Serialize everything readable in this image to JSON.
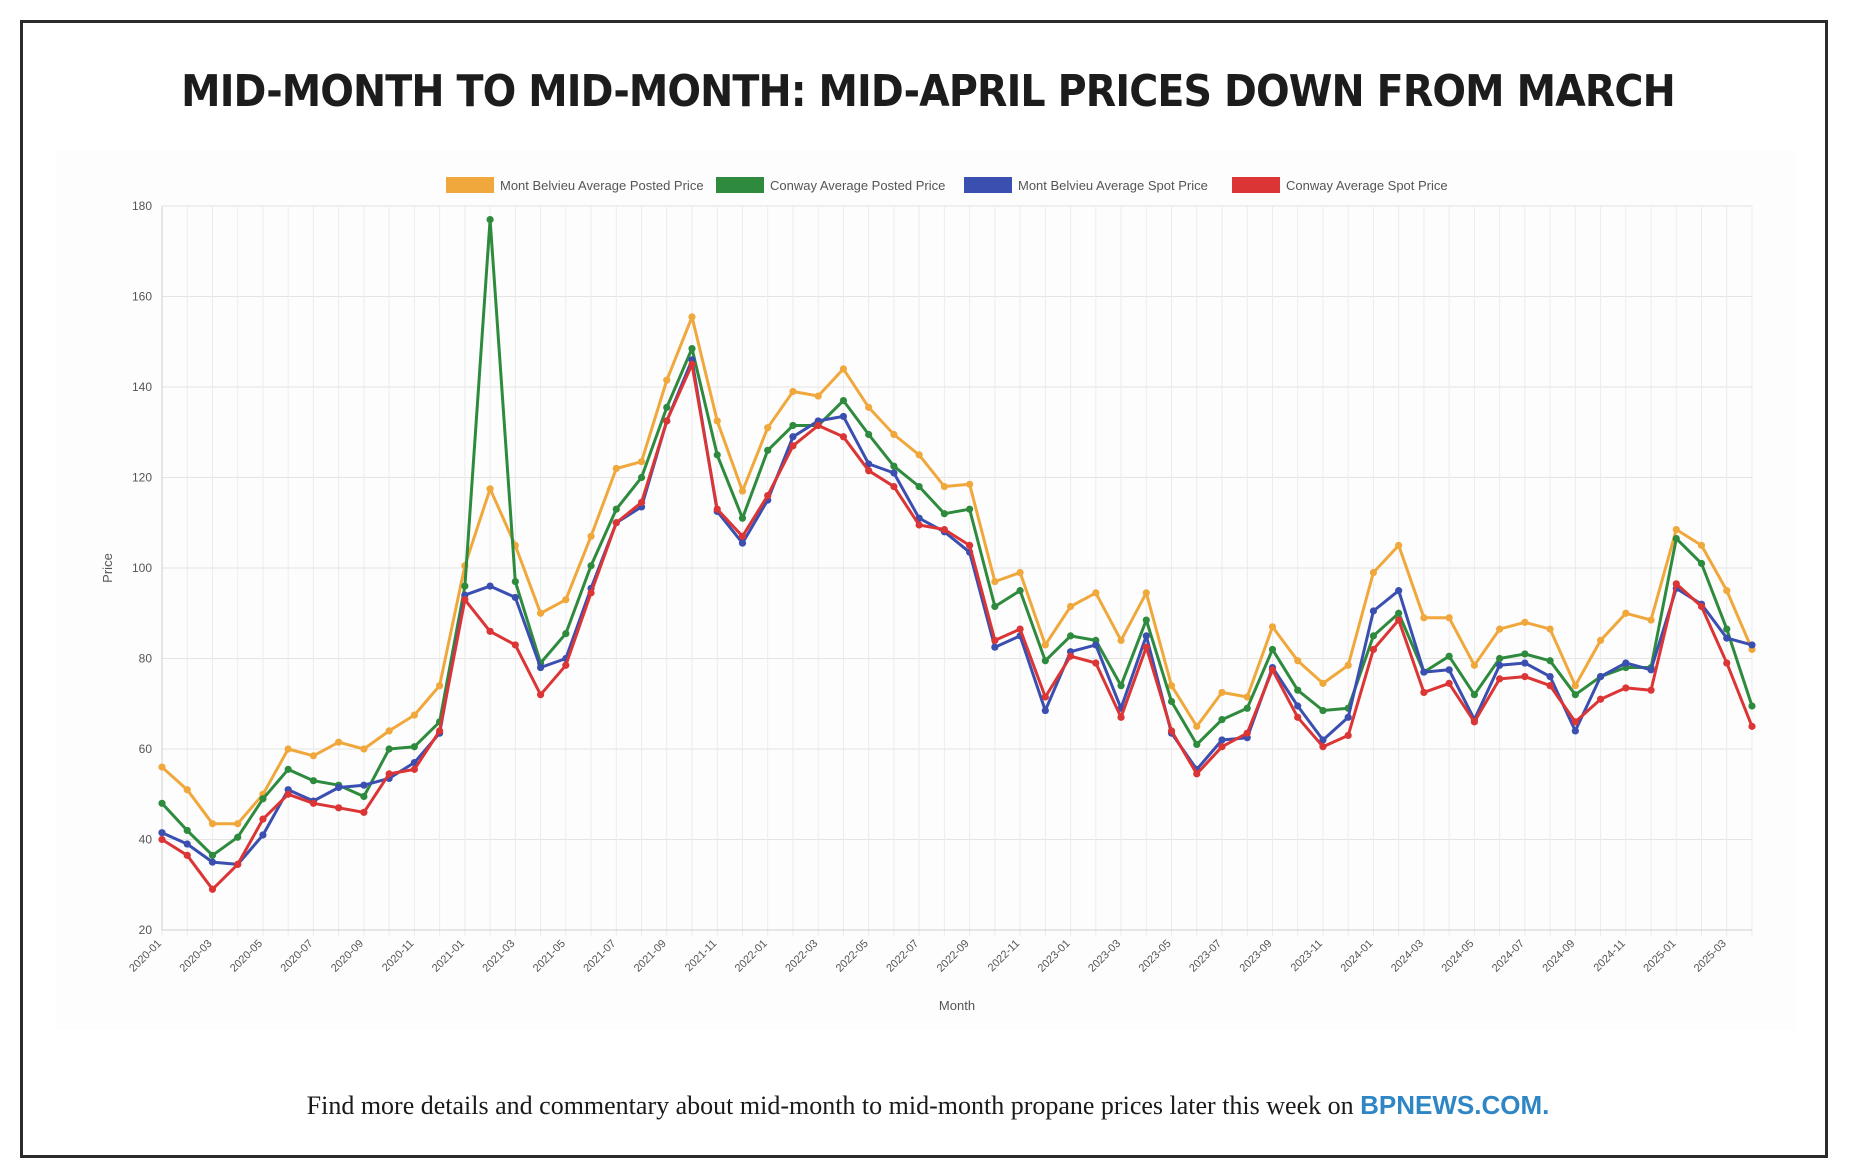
{
  "headline": "MID-MONTH TO MID-MONTH: MID-APRIL PRICES DOWN FROM MARCH",
  "footer": {
    "text": "Find more details and commentary about mid-month to mid-month propane prices later this week on ",
    "link": "BPNEWS.COM."
  },
  "chart_data": {
    "type": "line",
    "title": "",
    "xlabel": "Month",
    "ylabel": "Price",
    "ylim": [
      20,
      180
    ],
    "yticks": [
      20,
      40,
      60,
      80,
      100,
      120,
      140,
      160,
      180
    ],
    "grid": true,
    "legend_position": "top",
    "x": [
      "2020-01",
      "2020-02",
      "2020-03",
      "2020-04",
      "2020-05",
      "2020-06",
      "2020-07",
      "2020-08",
      "2020-09",
      "2020-10",
      "2020-11",
      "2020-12",
      "2021-01",
      "2021-02",
      "2021-03",
      "2021-04",
      "2021-05",
      "2021-06",
      "2021-07",
      "2021-08",
      "2021-09",
      "2021-10",
      "2021-11",
      "2021-12",
      "2022-01",
      "2022-02",
      "2022-03",
      "2022-04",
      "2022-05",
      "2022-06",
      "2022-07",
      "2022-08",
      "2022-09",
      "2022-10",
      "2022-11",
      "2022-12",
      "2023-01",
      "2023-02",
      "2023-03",
      "2023-04",
      "2023-05",
      "2023-06",
      "2023-07",
      "2023-08",
      "2023-09",
      "2023-10",
      "2023-11",
      "2023-12",
      "2024-01",
      "2024-02",
      "2024-03",
      "2024-04",
      "2024-05",
      "2024-06",
      "2024-07",
      "2024-08",
      "2024-09",
      "2024-10",
      "2024-11",
      "2024-12",
      "2025-01",
      "2025-02",
      "2025-03",
      "2025-04"
    ],
    "x_tick_labels": [
      "2020-01",
      "2020-03",
      "2020-05",
      "2020-07",
      "2020-09",
      "2020-11",
      "2021-01",
      "2021-03",
      "2021-05",
      "2021-07",
      "2021-09",
      "2021-11",
      "2022-01",
      "2022-03",
      "2022-05",
      "2022-07",
      "2022-09",
      "2022-11",
      "2023-01",
      "2023-03",
      "2023-05",
      "2023-07",
      "2023-09",
      "2023-11",
      "2024-01",
      "2024-03",
      "2024-05",
      "2024-07",
      "2024-09",
      "2024-11",
      "2025-01",
      "2025-03"
    ],
    "series": [
      {
        "name": "Mont Belvieu Average Posted Price",
        "color": "#f0a83c",
        "values": [
          56,
          51,
          43.5,
          43.5,
          50,
          60,
          58.5,
          61.5,
          60,
          64,
          67.5,
          74,
          100.5,
          117.5,
          105,
          90,
          93,
          107,
          122,
          123.5,
          141.5,
          155.5,
          132.5,
          117,
          131,
          139,
          138,
          144,
          135.5,
          129.5,
          125,
          118,
          118.5,
          97,
          99,
          83,
          91.5,
          94.5,
          84,
          94.5,
          74,
          65,
          72.5,
          71.5,
          87,
          79.5,
          74.5,
          78.5,
          99,
          105,
          89,
          89,
          78.5,
          86.5,
          88,
          86.5,
          74,
          84,
          90,
          88.5,
          108.5,
          105,
          95,
          82
        ]
      },
      {
        "name": "Conway Average Posted Price",
        "color": "#2e8b3e",
        "values": [
          48,
          42,
          36.5,
          40.5,
          49,
          55.5,
          53,
          52,
          49.5,
          60,
          60.5,
          66,
          96,
          177,
          97,
          79,
          85.5,
          100.5,
          113,
          120,
          135.5,
          148.5,
          125,
          111,
          126,
          131.5,
          131.5,
          137,
          129.5,
          122.5,
          118,
          112,
          113,
          91.5,
          95,
          79.5,
          85,
          84,
          74,
          88.5,
          70.5,
          61,
          66.5,
          69,
          82,
          73,
          68.5,
          69,
          85,
          90,
          77,
          80.5,
          72,
          80,
          81,
          79.5,
          72,
          76,
          78,
          78,
          106.5,
          101,
          86.5,
          69.5
        ]
      },
      {
        "name": "Mont Belvieu Average Spot Price",
        "color": "#3b4fb0",
        "values": [
          41.5,
          39,
          35,
          34.5,
          41,
          51,
          48.5,
          51.5,
          52,
          53.5,
          57,
          63.5,
          94,
          96,
          93.5,
          78,
          80,
          95.5,
          110,
          113.5,
          132.5,
          146,
          112.5,
          105.5,
          115,
          129,
          132.5,
          133.5,
          123,
          121,
          111,
          108,
          103.5,
          82.5,
          85,
          68.5,
          81.5,
          83,
          69,
          85,
          63.5,
          55.5,
          62,
          62.5,
          78,
          69.5,
          62,
          67,
          90.5,
          95,
          77,
          77.5,
          66.5,
          78.5,
          79,
          76,
          64,
          76,
          79,
          77.5,
          95.5,
          92,
          84.5,
          83
        ]
      },
      {
        "name": "Conway Average Spot Price",
        "color": "#dc3535",
        "values": [
          40,
          36.5,
          29,
          34.5,
          44.5,
          50,
          48,
          47,
          46,
          54.5,
          55.5,
          64,
          93,
          86,
          83,
          72,
          78.5,
          94.5,
          110,
          114.5,
          132.5,
          145,
          113,
          107,
          116,
          127,
          131.5,
          129,
          121.5,
          118,
          109.5,
          108.5,
          105,
          84,
          86.5,
          71.5,
          80.5,
          79,
          67,
          82.5,
          64,
          54.5,
          60.5,
          63.5,
          77.5,
          67,
          60.5,
          63,
          82,
          88.5,
          72.5,
          74.5,
          66,
          75.5,
          76,
          74,
          66,
          71,
          73.5,
          73,
          96.5,
          91.5,
          79,
          65
        ]
      }
    ]
  }
}
